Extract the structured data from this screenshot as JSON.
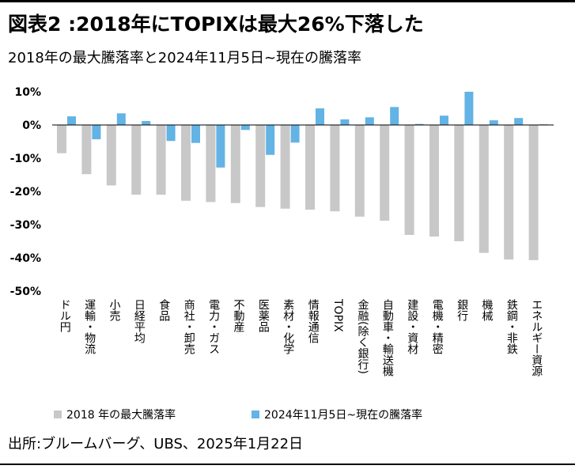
{
  "colors": {
    "series_2018": "#c8c8c8",
    "series_recent": "#63b3e4",
    "axis": "#000000"
  },
  "source": "出所:ブルームバーグ、UBS、2025年1月22日",
  "chart_data": {
    "type": "bar",
    "title": "図表2 :2018年にTOPIXは最大26%下落した",
    "subtitle": "2018年の最大騰落率と2024年11月5日~現在の騰落率",
    "xlabel": "",
    "ylabel": "",
    "unit": "%",
    "ylim": [
      -50,
      10
    ],
    "yticks": [
      10,
      0,
      -10,
      -20,
      -30,
      -40,
      -50
    ],
    "ytick_labels": [
      "10%",
      "0%",
      "-10%",
      "-20%",
      "-30%",
      "-40%",
      "-50%"
    ],
    "grid": false,
    "legend": "bottom",
    "categories": [
      "ドル円",
      "運輸・物流",
      "小売",
      "日経平均",
      "食品",
      "商社・卸売",
      "電力・ガス",
      "不動産",
      "医薬品",
      "素材・化学",
      "情報通信",
      "TOPIX",
      "金融(除く銀行)",
      "自動車・輸送機",
      "建設・資材",
      "電機・精密",
      "銀行",
      "機械",
      "鉄鋼・非鉄",
      "エネルギー資源"
    ],
    "series": [
      {
        "name": "2018 年の最大騰落率",
        "values": [
          -8.5,
          -14.8,
          -18.2,
          -21.0,
          -21.0,
          -22.8,
          -23.2,
          -23.5,
          -24.7,
          -25.2,
          -25.5,
          -26.0,
          -27.6,
          -28.8,
          -33.1,
          -33.6,
          -35.0,
          -38.5,
          -40.5,
          -40.7
        ]
      },
      {
        "name": "2024年11月5日~現在の騰落率",
        "values": [
          2.6,
          -4.3,
          3.5,
          1.2,
          -4.8,
          -5.4,
          -12.8,
          -1.5,
          -9.0,
          -5.3,
          5.0,
          1.7,
          2.3,
          5.4,
          0.3,
          2.8,
          10.0,
          1.4,
          2.1,
          0.2
        ]
      }
    ]
  }
}
